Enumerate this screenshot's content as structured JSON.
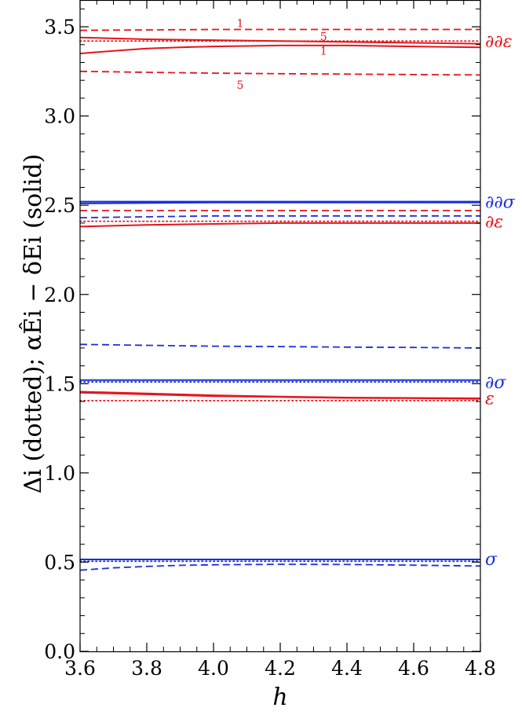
{
  "chart_data": {
    "type": "line",
    "xlabel": "h",
    "ylabel": "Δi (dotted);  αÊi − δEi (solid)",
    "xlim": [
      3.6,
      4.8
    ],
    "ylim": [
      0.0,
      3.65
    ],
    "x_ticks": [
      "3.6",
      "3.8",
      "4.0",
      "4.2",
      "4.4",
      "4.6",
      "4.8"
    ],
    "y_ticks": [
      "0.0",
      "0.5",
      "1.0",
      "1.5",
      "2.0",
      "2.5",
      "3.0",
      "3.5"
    ],
    "grid": false,
    "legend": "none",
    "colors": {
      "red": "#e8141c",
      "blue": "#1a2fe0"
    },
    "groups": [
      {
        "label": "∂∂ε",
        "color": "red",
        "label_y": 3.42,
        "dotted": 3.42,
        "solid": [
          {
            "x": [
              3.6,
              3.8,
              4.0,
              4.2,
              4.4,
              4.6,
              4.8
            ],
            "y": [
              3.44,
              3.43,
              3.425,
              3.42,
              3.415,
              3.41,
              3.405
            ]
          },
          {
            "x": [
              3.6,
              3.7,
              3.8,
              3.9,
              4.0,
              4.2,
              4.4,
              4.6,
              4.8
            ],
            "y": [
              3.35,
              3.365,
              3.378,
              3.385,
              3.39,
              3.395,
              3.395,
              3.39,
              3.385
            ]
          }
        ],
        "dashed": [
          {
            "x": [
              3.6,
              4.0,
              4.4,
              4.8
            ],
            "y": [
              3.48,
              3.485,
              3.485,
              3.485
            ]
          },
          {
            "x": [
              3.6,
              3.8,
              4.0,
              4.2,
              4.4,
              4.6,
              4.8
            ],
            "y": [
              3.25,
              3.245,
              3.24,
              3.237,
              3.235,
              3.232,
              3.23
            ]
          }
        ]
      },
      {
        "label": "∂∂σ",
        "color": "blue",
        "label_y": 2.52,
        "dotted": 2.52,
        "solid": [
          {
            "x": [
              3.6,
              4.0,
              4.4,
              4.8
            ],
            "y": [
              2.52,
              2.52,
              2.52,
              2.52
            ]
          },
          {
            "x": [
              3.6,
              4.0,
              4.4,
              4.8
            ],
            "y": [
              2.51,
              2.515,
              2.515,
              2.515
            ]
          }
        ],
        "dashed": [
          {
            "x": [
              3.6,
              4.0,
              4.4,
              4.8
            ],
            "y": [
              2.43,
              2.44,
              2.44,
              2.44
            ]
          }
        ]
      },
      {
        "label": "∂ε",
        "color": "red",
        "label_y": 2.41,
        "dotted": 2.41,
        "solid": [
          {
            "x": [
              3.6,
              3.8,
              4.0,
              4.2,
              4.4,
              4.6,
              4.8
            ],
            "y": [
              2.38,
              2.39,
              2.395,
              2.4,
              2.4,
              2.4,
              2.4
            ]
          }
        ],
        "dashed": [
          {
            "x": [
              3.6,
              4.0,
              4.4,
              4.8
            ],
            "y": [
              2.47,
              2.47,
              2.47,
              2.47
            ]
          }
        ]
      },
      {
        "label": "∂σ",
        "color": "blue",
        "label_y": 1.51,
        "dotted": 1.51,
        "solid": [
          {
            "x": [
              3.6,
              4.0,
              4.4,
              4.8
            ],
            "y": [
              1.52,
              1.52,
              1.52,
              1.52
            ]
          }
        ],
        "dashed": [
          {
            "x": [
              3.6,
              3.8,
              4.0,
              4.2,
              4.4,
              4.6,
              4.8
            ],
            "y": [
              1.72,
              1.715,
              1.71,
              1.708,
              1.705,
              1.703,
              1.7
            ]
          }
        ]
      },
      {
        "label": "ε",
        "color": "red",
        "label_y": 1.42,
        "dotted": 1.405,
        "solid": [
          {
            "x": [
              3.6,
              3.8,
              4.0,
              4.2,
              4.4,
              4.6,
              4.8
            ],
            "y": [
              1.45,
              1.44,
              1.43,
              1.425,
              1.42,
              1.418,
              1.415
            ]
          },
          {
            "x": [
              3.6,
              3.8,
              4.0,
              4.2,
              4.4,
              4.6,
              4.8
            ],
            "y": [
              1.455,
              1.445,
              1.435,
              1.428,
              1.422,
              1.42,
              1.418
            ]
          }
        ],
        "dashed": []
      },
      {
        "label": "σ",
        "color": "blue",
        "label_y": 0.52,
        "dotted": 0.505,
        "solid": [
          {
            "x": [
              3.6,
              4.0,
              4.4,
              4.8
            ],
            "y": [
              0.515,
              0.515,
              0.515,
              0.515
            ]
          }
        ],
        "dashed": [
          {
            "x": [
              3.6,
              3.7,
              3.8,
              3.9,
              4.0,
              4.2,
              4.4,
              4.6,
              4.8
            ],
            "y": [
              0.455,
              0.468,
              0.476,
              0.482,
              0.485,
              0.488,
              0.487,
              0.483,
              0.478
            ]
          }
        ]
      }
    ],
    "annotations": [
      {
        "text": "1",
        "x": 4.08,
        "y": 3.52,
        "color": "red"
      },
      {
        "text": "5",
        "x": 4.33,
        "y": 3.445,
        "color": "red"
      },
      {
        "text": "1",
        "x": 4.33,
        "y": 3.365,
        "color": "red"
      },
      {
        "text": "5",
        "x": 4.08,
        "y": 3.175,
        "color": "red"
      }
    ]
  }
}
